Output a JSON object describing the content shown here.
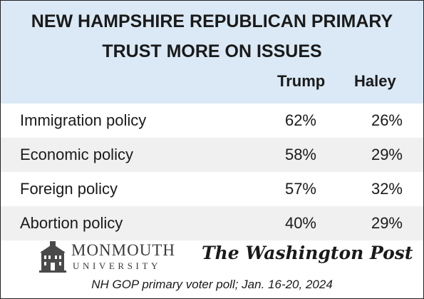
{
  "title_line1": "NEW HAMPSHIRE REPUBLICAN PRIMARY",
  "title_line2": "TRUST MORE ON ISSUES",
  "columns": [
    "Trump",
    "Haley"
  ],
  "rows": [
    {
      "label": "Immigration policy",
      "trump": "62%",
      "haley": "26%"
    },
    {
      "label": "Economic policy",
      "trump": "58%",
      "haley": "29%"
    },
    {
      "label": "Foreign policy",
      "trump": "57%",
      "haley": "32%"
    },
    {
      "label": "Abortion policy",
      "trump": "40%",
      "haley": "29%"
    }
  ],
  "logos": {
    "monmouth_name": "MONMOUTH",
    "monmouth_sub": "UNIVERSITY",
    "wapo": "The Washington Post"
  },
  "footer": "NH GOP primary voter poll;  Jan. 16-20, 2024",
  "colors": {
    "header_bg": "#dae9f5",
    "row_shade": "#f0f0f0"
  },
  "chart_data": {
    "type": "table",
    "title": "NEW HAMPSHIRE REPUBLICAN PRIMARY TRUST MORE ON ISSUES",
    "columns": [
      "Trump",
      "Haley"
    ],
    "categories": [
      "Immigration policy",
      "Economic policy",
      "Foreign policy",
      "Abortion policy"
    ],
    "series": [
      {
        "name": "Trump",
        "values": [
          62,
          58,
          57,
          40
        ]
      },
      {
        "name": "Haley",
        "values": [
          26,
          29,
          32,
          29
        ]
      }
    ],
    "unit": "%"
  }
}
